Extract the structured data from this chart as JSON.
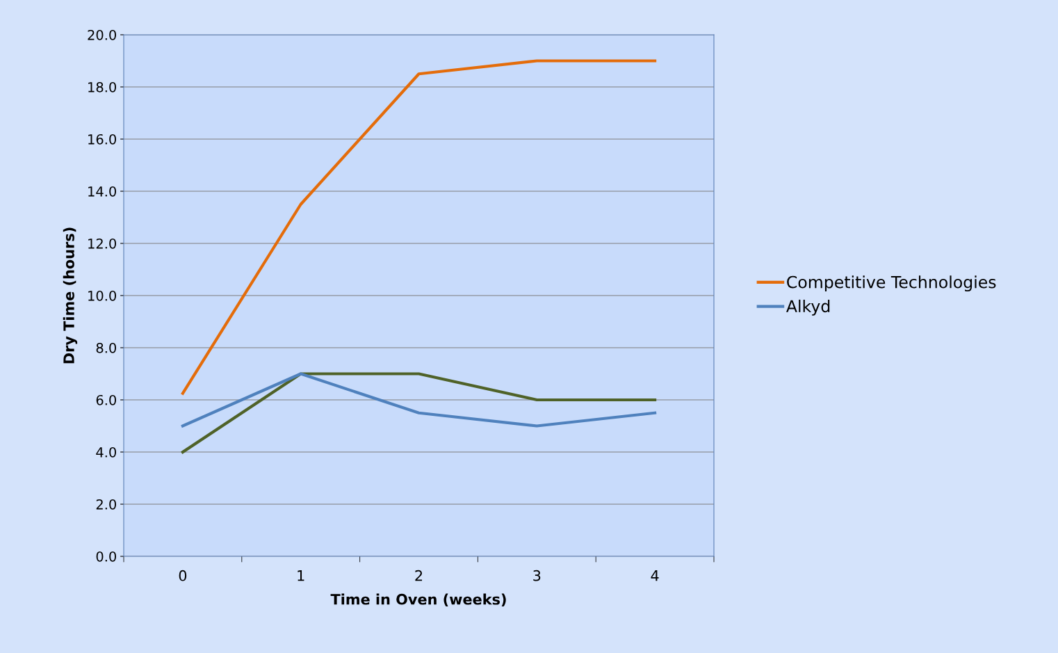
{
  "chart_data": {
    "type": "line",
    "xlabel": "Time in Oven (weeks)",
    "ylabel": "Dry Time (hours)",
    "categories": [
      "0",
      "1",
      "2",
      "3",
      "4"
    ],
    "series": [
      {
        "color": "#4f6228",
        "values": [
          4.0,
          7.0,
          7.0,
          6.0,
          6.0
        ]
      },
      {
        "name": "Competitive Technologies",
        "color": "#e46c0a",
        "values": [
          6.25,
          13.5,
          18.5,
          19.0,
          19.0
        ]
      },
      {
        "name": "Alkyd",
        "color": "#4f81bd",
        "values": [
          5.0,
          7.0,
          5.5,
          5.0,
          5.5
        ]
      }
    ],
    "ylim": [
      0,
      20
    ],
    "yticks": [
      {
        "value": 0,
        "label": "0.0"
      },
      {
        "value": 2,
        "label": "2.0"
      },
      {
        "value": 4,
        "label": "4.0"
      },
      {
        "value": 6,
        "label": "6.0"
      },
      {
        "value": 8,
        "label": "8.0"
      },
      {
        "value": 10,
        "label": "10.0"
      },
      {
        "value": 12,
        "label": "12.0"
      },
      {
        "value": 14,
        "label": "14.0"
      },
      {
        "value": 16,
        "label": "16.0"
      },
      {
        "value": 18,
        "label": "18.0"
      },
      {
        "value": 20,
        "label": "20.0"
      }
    ],
    "grid": "y",
    "legend": "right",
    "marker": "none",
    "line_style": "solid"
  }
}
